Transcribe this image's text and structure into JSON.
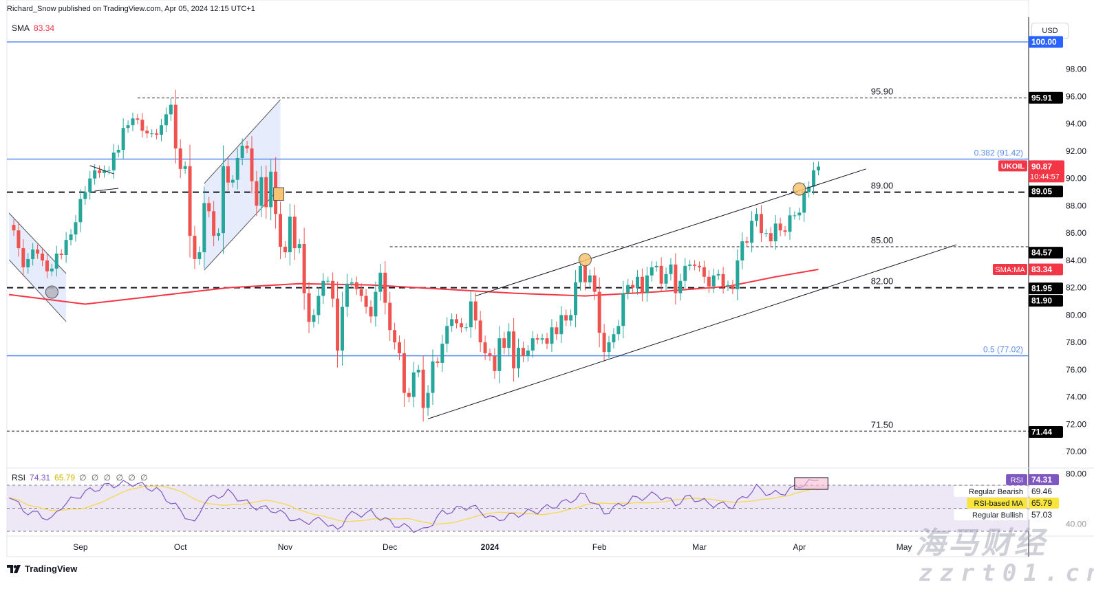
{
  "header": {
    "publisher_line": "Richard_Snow published on TradingView.com, Apr 05, 2024 12:15 UTC+1",
    "indicator_label": "SMA",
    "indicator_value": "83.34",
    "currency": "USD"
  },
  "rsi_legend": {
    "label": "RSI",
    "value": "74.31",
    "ma_value": "65.79",
    "empty_values": "∅ ∅ ∅ ∅ ∅ ∅"
  },
  "footer": {
    "logo": "TradingView",
    "logo_icon": "tradingview-logo-icon"
  },
  "watermark": {
    "line1": "海马财经",
    "line2": "zzrt01.cn"
  },
  "colors": {
    "up": "#26a69a",
    "down": "#ef5350",
    "sma": "#f23645",
    "fib": "#2962ff",
    "rsi": "#7e57c2",
    "rsi_ma": "#f7d84a",
    "rsi_band": "#ede7f6",
    "pattern_fill": "#e3e9fc",
    "marker_orange": "#f9c471",
    "marker_grey": "#b2b5be"
  },
  "chart_data": {
    "type": "candlestick",
    "symbol": "UKOIL",
    "interval": "daily",
    "price_axis": {
      "min": 70,
      "max": 100,
      "ticks": [
        "98.00",
        "96.00",
        "94.00",
        "92.00",
        "90.00",
        "88.00",
        "86.00",
        "84.00",
        "82.00",
        "80.00",
        "78.00",
        "76.00",
        "74.00",
        "72.00",
        "70.00"
      ],
      "tick_values": [
        98,
        96,
        94,
        92,
        90,
        88,
        86,
        84,
        82,
        80,
        78,
        76,
        74,
        72,
        70
      ]
    },
    "x_ticks": [
      {
        "label": "Sep",
        "date": "2023-09-01",
        "bold": false
      },
      {
        "label": "Oct",
        "date": "2023-10-02",
        "bold": false
      },
      {
        "label": "Nov",
        "date": "2023-11-01",
        "bold": false
      },
      {
        "label": "Dec",
        "date": "2023-12-01",
        "bold": false
      },
      {
        "label": "2024",
        "date": "2024-01-01",
        "bold": true
      },
      {
        "label": "Feb",
        "date": "2024-02-01",
        "bold": false
      },
      {
        "label": "Mar",
        "date": "2024-03-01",
        "bold": false
      },
      {
        "label": "Apr",
        "date": "2024-04-01",
        "bold": false
      },
      {
        "label": "May",
        "date": "2024-05-01",
        "bold": false
      }
    ],
    "candles": {
      "start_date": "2023-08-14",
      "first_open": 86.6,
      "closes": [
        86.2,
        84.9,
        83.5,
        84.1,
        84.8,
        84.5,
        84.0,
        83.2,
        83.4,
        84.5,
        84.4,
        85.5,
        85.9,
        86.8,
        88.5,
        89.0,
        90.0,
        90.6,
        90.4,
        90.6,
        90.6,
        91.9,
        92.1,
        93.7,
        93.9,
        94.4,
        94.3,
        93.5,
        93.3,
        93.3,
        93.2,
        93.9,
        94.7,
        95.4,
        92.2,
        90.7,
        90.9,
        85.8,
        84.1,
        84.6,
        88.2,
        87.6,
        85.8,
        86.0,
        90.9,
        89.7,
        89.9,
        91.5,
        92.4,
        92.2,
        89.8,
        88.0,
        90.1,
        87.9,
        90.5,
        87.4,
        85.0,
        84.6,
        87.2,
        84.9,
        85.2,
        81.6,
        79.5,
        80.0,
        81.4,
        82.5,
        82.5,
        81.2,
        77.4,
        80.6,
        82.3,
        82.4,
        81.9,
        81.4,
        80.6,
        79.9,
        81.7,
        83.1,
        80.9,
        78.9,
        78.0,
        77.2,
        74.3,
        74.0,
        75.8,
        76.0,
        73.2,
        74.3,
        76.6,
        76.5,
        77.9,
        79.2,
        79.7,
        79.4,
        79.1,
        79.1,
        81.0,
        79.6,
        78.0,
        77.2,
        77.0,
        75.9,
        78.3,
        77.6,
        78.8,
        76.1,
        77.6,
        77.0,
        77.4,
        78.3,
        78.2,
        78.3,
        77.9,
        79.1,
        78.6,
        80.0,
        79.6,
        80.0,
        82.4,
        83.6,
        82.4,
        82.9,
        81.7,
        78.7,
        77.3,
        78.0,
        78.6,
        79.2,
        81.6,
        82.2,
        82.0,
        82.8,
        81.6,
        82.9,
        83.5,
        83.6,
        82.3,
        83.0,
        83.7,
        81.6,
        82.5,
        83.6,
        83.7,
        83.6,
        83.5,
        82.8,
        82.1,
        82.9,
        83.0,
        82.1,
        82.2,
        81.9,
        84.0,
        85.4,
        85.3,
        86.9,
        87.4,
        86.0,
        86.0,
        85.4,
        86.7,
        86.2,
        86.1,
        87.3,
        87.3,
        87.5,
        89.0,
        89.4,
        90.6,
        90.87
      ]
    },
    "sma": {
      "label": "SMA",
      "value": 83.34,
      "points": [
        [
          "2023-08-11",
          81.5
        ],
        [
          "2023-09-04",
          80.8
        ],
        [
          "2023-09-25",
          81.4
        ],
        [
          "2023-10-16",
          82.0
        ],
        [
          "2023-11-06",
          82.3
        ],
        [
          "2023-11-27",
          82.2
        ],
        [
          "2023-12-18",
          81.9
        ],
        [
          "2024-01-08",
          81.6
        ],
        [
          "2024-01-29",
          81.4
        ],
        [
          "2024-02-19",
          81.7
        ],
        [
          "2024-03-11",
          82.1
        ],
        [
          "2024-03-25",
          82.8
        ],
        [
          "2024-04-05",
          83.34
        ]
      ]
    },
    "levels": [
      {
        "price": 95.9,
        "label": "95.90",
        "from": "2023-09-19",
        "style": "thin-dashed"
      },
      {
        "price": 89.0,
        "label": "89.00",
        "from": null,
        "style": "thick-dashed"
      },
      {
        "price": 85.0,
        "label": "85.00",
        "from": "2023-12-01",
        "style": "thin-dashed"
      },
      {
        "price": 82.0,
        "label": "82.00",
        "from": null,
        "style": "thick-dashed"
      },
      {
        "price": 71.5,
        "label": "71.50",
        "from": null,
        "style": "thin-dashed"
      }
    ],
    "fib_levels": [
      {
        "price": 100.0,
        "label": ""
      },
      {
        "price": 91.42,
        "label": "0.382 (91.42)"
      },
      {
        "price": 77.02,
        "label": "0.5 (77.02)"
      }
    ],
    "trendlines": [
      {
        "from": [
          "2023-12-27",
          81.4
        ],
        "to": [
          "2024-04-19",
          90.7
        ]
      },
      {
        "from": [
          "2023-12-13",
          72.4
        ],
        "to": [
          "2024-05-16",
          85.15
        ]
      },
      {
        "from": [
          "2023-09-05",
          90.94
        ],
        "to": [
          "2023-09-12",
          90.34
        ]
      },
      {
        "from": [
          "2023-09-06",
          89.08
        ],
        "to": [
          "2023-09-13",
          89.28
        ]
      }
    ],
    "channels": [
      {
        "upper": [
          [
            "2023-08-11",
            87.47
          ],
          [
            "2023-08-29",
            83.04
          ]
        ],
        "lower": [
          [
            "2023-08-11",
            84.05
          ],
          [
            "2023-08-29",
            79.52
          ]
        ]
      },
      {
        "upper": [
          [
            "2023-10-09",
            89.63
          ],
          [
            "2023-10-31",
            95.77
          ]
        ],
        "lower": [
          [
            "2023-10-09",
            83.29
          ],
          [
            "2023-10-31",
            89.33
          ]
        ]
      }
    ],
    "markers": [
      {
        "type": "circle",
        "color": "grey",
        "date": "2023-08-24",
        "price": 81.68
      },
      {
        "type": "circle",
        "color": "orange",
        "date": "2024-01-29",
        "price": 84.05
      },
      {
        "type": "circle",
        "color": "orange",
        "date": "2024-04-01",
        "price": 89.23
      },
      {
        "type": "box",
        "color": "orange",
        "from": [
          "2023-10-30",
          89.33
        ],
        "to": [
          "2023-10-31",
          88.4
        ]
      }
    ],
    "axis_badges": [
      {
        "text": "100.00",
        "price": 100.0,
        "bg": "#2962ff",
        "fg": "#ffffff"
      },
      {
        "text": "95.91",
        "price": 95.91,
        "bg": "#000000",
        "fg": "#ffffff"
      },
      {
        "text": "89.05",
        "price": 89.05,
        "bg": "#000000",
        "fg": "#ffffff"
      },
      {
        "text": "84.57",
        "price": 84.57,
        "bg": "#000000",
        "fg": "#ffffff"
      },
      {
        "text": "81.95",
        "price": 81.95,
        "bg": "#000000",
        "fg": "#ffffff"
      },
      {
        "text": "81.90",
        "price": 81.6,
        "bg": "#000000",
        "fg": "#ffffff"
      },
      {
        "text": "71.44",
        "price": 71.44,
        "bg": "#000000",
        "fg": "#ffffff"
      }
    ],
    "last_price": {
      "symbol": "UKOIL",
      "value": "90.87",
      "countdown": "10:44:57",
      "price": 90.87,
      "bg": "#f23645"
    },
    "sma_badge": {
      "label": "SMA:MA",
      "value": "83.34",
      "price": 83.34
    },
    "rsi": {
      "axis_top_label": "80.00",
      "axis_bottom_label": "40.00",
      "bands": [
        70,
        50,
        30
      ],
      "points": [
        [
          "2023-08-11",
          62
        ],
        [
          "2023-08-16",
          48
        ],
        [
          "2023-08-21",
          45
        ],
        [
          "2023-08-24",
          40
        ],
        [
          "2023-08-28",
          52
        ],
        [
          "2023-09-04",
          64
        ],
        [
          "2023-09-11",
          70
        ],
        [
          "2023-09-18",
          72
        ],
        [
          "2023-09-25",
          66
        ],
        [
          "2023-10-02",
          48
        ],
        [
          "2023-10-05",
          36
        ],
        [
          "2023-10-09",
          56
        ],
        [
          "2023-10-16",
          64
        ],
        [
          "2023-10-23",
          52
        ],
        [
          "2023-10-30",
          48
        ],
        [
          "2023-11-06",
          38
        ],
        [
          "2023-11-13",
          40
        ],
        [
          "2023-11-16",
          30
        ],
        [
          "2023-11-20",
          44
        ],
        [
          "2023-11-27",
          46
        ],
        [
          "2023-12-04",
          36
        ],
        [
          "2023-12-12",
          30
        ],
        [
          "2023-12-18",
          46
        ],
        [
          "2023-12-26",
          52
        ],
        [
          "2024-01-02",
          40
        ],
        [
          "2024-01-08",
          44
        ],
        [
          "2024-01-15",
          48
        ],
        [
          "2024-01-22",
          54
        ],
        [
          "2024-01-29",
          62
        ],
        [
          "2024-02-02",
          46
        ],
        [
          "2024-02-12",
          58
        ],
        [
          "2024-02-19",
          62
        ],
        [
          "2024-02-23",
          54
        ],
        [
          "2024-02-28",
          60
        ],
        [
          "2024-03-05",
          54
        ],
        [
          "2024-03-12",
          52
        ],
        [
          "2024-03-19",
          68
        ],
        [
          "2024-03-22",
          62
        ],
        [
          "2024-03-27",
          64
        ],
        [
          "2024-04-01",
          70
        ],
        [
          "2024-04-05",
          74.31
        ]
      ],
      "ma_value": 65.79,
      "divergence_box": {
        "from": [
          "2024-03-29",
          76.6
        ],
        "to": [
          "2024-04-09",
          66.4
        ]
      },
      "badges": [
        {
          "label": "RSI",
          "value": "74.31",
          "bg": "#7e57c2",
          "fg": "#ffffff",
          "level": 74.31
        },
        {
          "label": "Regular Bearish",
          "value": "69.46",
          "bg": "#ffffff",
          "fg": "#131722",
          "level": 69.46
        },
        {
          "label": "RSI-based MA",
          "value": "65.79",
          "bg": "#f7e53b",
          "fg": "#131722",
          "level": 65.79
        },
        {
          "label": "Regular Bullish",
          "value": "57.03",
          "bg": "#ffffff",
          "fg": "#131722",
          "level": 57.03
        }
      ]
    }
  }
}
